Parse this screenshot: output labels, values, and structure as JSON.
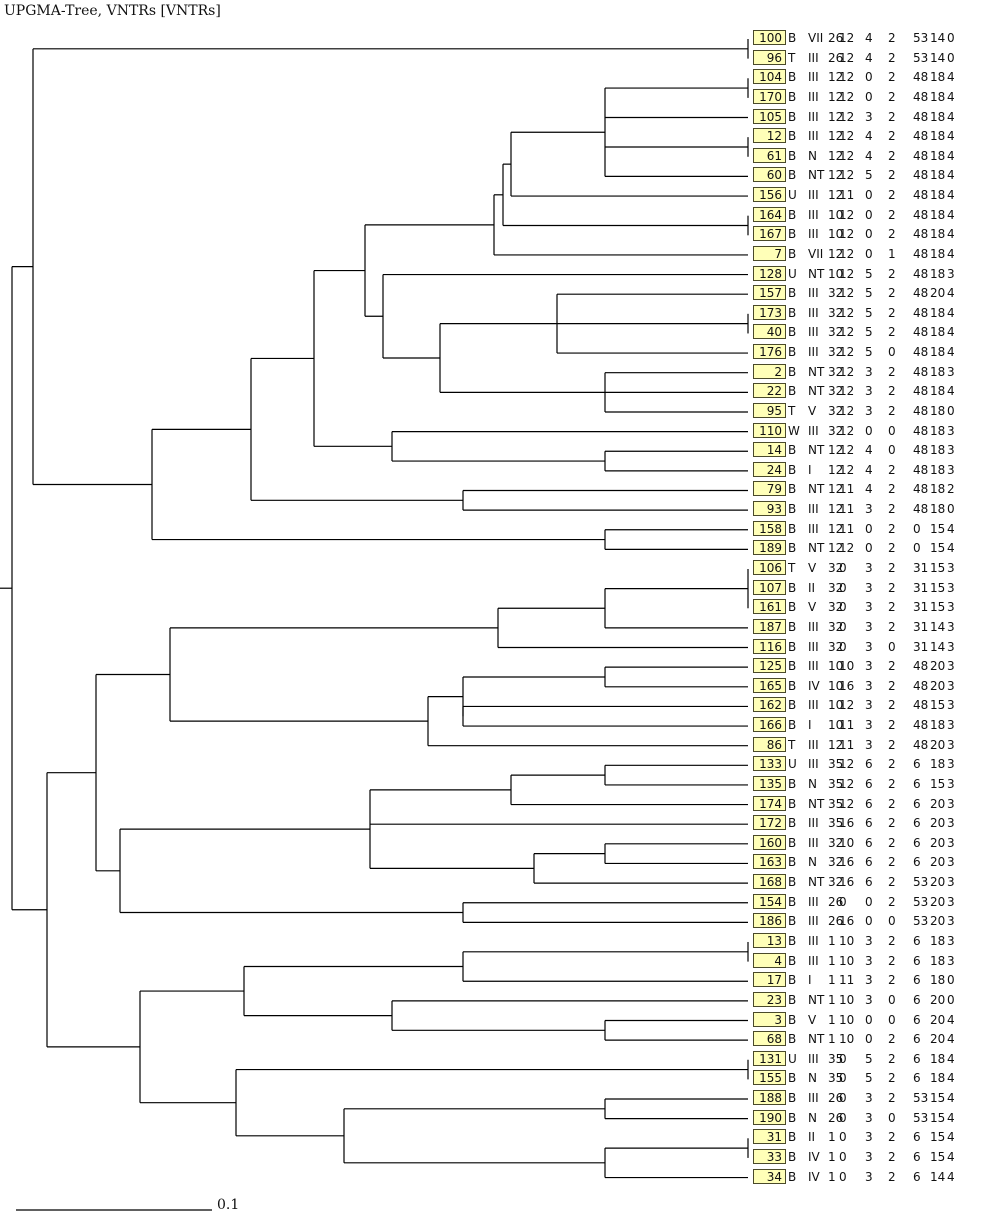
{
  "title": "UPGMA-Tree, VNTRs [VNTRs]",
  "scale_label": "0.1",
  "colors": {
    "label_fill": "#ffffb8",
    "line": "#000000"
  },
  "leaves": [
    {
      "id": "100",
      "cls": "B",
      "type": "VII",
      "v": [
        "26",
        "12",
        "4",
        "2",
        "53",
        "14",
        "0"
      ]
    },
    {
      "id": "96",
      "cls": "T",
      "type": "III",
      "v": [
        "26",
        "12",
        "4",
        "2",
        "53",
        "14",
        "0"
      ]
    },
    {
      "id": "104",
      "cls": "B",
      "type": "III",
      "v": [
        "12",
        "12",
        "0",
        "2",
        "48",
        "18",
        "4"
      ]
    },
    {
      "id": "170",
      "cls": "B",
      "type": "III",
      "v": [
        "12",
        "12",
        "0",
        "2",
        "48",
        "18",
        "4"
      ]
    },
    {
      "id": "105",
      "cls": "B",
      "type": "III",
      "v": [
        "12",
        "12",
        "3",
        "2",
        "48",
        "18",
        "4"
      ]
    },
    {
      "id": "12",
      "cls": "B",
      "type": "III",
      "v": [
        "12",
        "12",
        "4",
        "2",
        "48",
        "18",
        "4"
      ]
    },
    {
      "id": "61",
      "cls": "B",
      "type": "N",
      "v": [
        "12",
        "12",
        "4",
        "2",
        "48",
        "18",
        "4"
      ]
    },
    {
      "id": "60",
      "cls": "B",
      "type": "NT",
      "v": [
        "12",
        "12",
        "5",
        "2",
        "48",
        "18",
        "4"
      ]
    },
    {
      "id": "156",
      "cls": "U",
      "type": "III",
      "v": [
        "12",
        "11",
        "0",
        "2",
        "48",
        "18",
        "4"
      ]
    },
    {
      "id": "164",
      "cls": "B",
      "type": "III",
      "v": [
        "10",
        "12",
        "0",
        "2",
        "48",
        "18",
        "4"
      ]
    },
    {
      "id": "167",
      "cls": "B",
      "type": "III",
      "v": [
        "10",
        "12",
        "0",
        "2",
        "48",
        "18",
        "4"
      ]
    },
    {
      "id": "7",
      "cls": "B",
      "type": "VII",
      "v": [
        "12",
        "12",
        "0",
        "1",
        "48",
        "18",
        "4"
      ]
    },
    {
      "id": "128",
      "cls": "U",
      "type": "NT",
      "v": [
        "10",
        "12",
        "5",
        "2",
        "48",
        "18",
        "3"
      ]
    },
    {
      "id": "157",
      "cls": "B",
      "type": "III",
      "v": [
        "32",
        "12",
        "5",
        "2",
        "48",
        "20",
        "4"
      ]
    },
    {
      "id": "173",
      "cls": "B",
      "type": "III",
      "v": [
        "32",
        "12",
        "5",
        "2",
        "48",
        "18",
        "4"
      ]
    },
    {
      "id": "40",
      "cls": "B",
      "type": "III",
      "v": [
        "32",
        "12",
        "5",
        "2",
        "48",
        "18",
        "4"
      ]
    },
    {
      "id": "176",
      "cls": "B",
      "type": "III",
      "v": [
        "32",
        "12",
        "5",
        "0",
        "48",
        "18",
        "4"
      ]
    },
    {
      "id": "2",
      "cls": "B",
      "type": "NT",
      "v": [
        "32",
        "12",
        "3",
        "2",
        "48",
        "18",
        "3"
      ]
    },
    {
      "id": "22",
      "cls": "B",
      "type": "NT",
      "v": [
        "32",
        "12",
        "3",
        "2",
        "48",
        "18",
        "4"
      ]
    },
    {
      "id": "95",
      "cls": "T",
      "type": "V",
      "v": [
        "32",
        "12",
        "3",
        "2",
        "48",
        "18",
        "0"
      ]
    },
    {
      "id": "110",
      "cls": "W",
      "type": "III",
      "v": [
        "32",
        "12",
        "0",
        "0",
        "48",
        "18",
        "3"
      ]
    },
    {
      "id": "14",
      "cls": "B",
      "type": "NT",
      "v": [
        "12",
        "12",
        "4",
        "0",
        "48",
        "18",
        "3"
      ]
    },
    {
      "id": "24",
      "cls": "B",
      "type": "I",
      "v": [
        "12",
        "12",
        "4",
        "2",
        "48",
        "18",
        "3"
      ]
    },
    {
      "id": "79",
      "cls": "B",
      "type": "NT",
      "v": [
        "12",
        "11",
        "4",
        "2",
        "48",
        "18",
        "2"
      ]
    },
    {
      "id": "93",
      "cls": "B",
      "type": "III",
      "v": [
        "12",
        "11",
        "3",
        "2",
        "48",
        "18",
        "0"
      ]
    },
    {
      "id": "158",
      "cls": "B",
      "type": "III",
      "v": [
        "12",
        "11",
        "0",
        "2",
        "0",
        "15",
        "4"
      ]
    },
    {
      "id": "189",
      "cls": "B",
      "type": "NT",
      "v": [
        "12",
        "12",
        "0",
        "2",
        "0",
        "15",
        "4"
      ]
    },
    {
      "id": "106",
      "cls": "T",
      "type": "V",
      "v": [
        "32",
        "0",
        "3",
        "2",
        "31",
        "15",
        "3"
      ]
    },
    {
      "id": "107",
      "cls": "B",
      "type": "II",
      "v": [
        "32",
        "0",
        "3",
        "2",
        "31",
        "15",
        "3"
      ]
    },
    {
      "id": "161",
      "cls": "B",
      "type": "V",
      "v": [
        "32",
        "0",
        "3",
        "2",
        "31",
        "15",
        "3"
      ]
    },
    {
      "id": "187",
      "cls": "B",
      "type": "III",
      "v": [
        "32",
        "0",
        "3",
        "2",
        "31",
        "14",
        "3"
      ]
    },
    {
      "id": "116",
      "cls": "B",
      "type": "III",
      "v": [
        "32",
        "0",
        "3",
        "0",
        "31",
        "14",
        "3"
      ]
    },
    {
      "id": "125",
      "cls": "B",
      "type": "III",
      "v": [
        "10",
        "10",
        "3",
        "2",
        "48",
        "20",
        "3"
      ]
    },
    {
      "id": "165",
      "cls": "B",
      "type": "IV",
      "v": [
        "10",
        "16",
        "3",
        "2",
        "48",
        "20",
        "3"
      ]
    },
    {
      "id": "162",
      "cls": "B",
      "type": "III",
      "v": [
        "10",
        "12",
        "3",
        "2",
        "48",
        "15",
        "3"
      ]
    },
    {
      "id": "166",
      "cls": "B",
      "type": "I",
      "v": [
        "10",
        "11",
        "3",
        "2",
        "48",
        "18",
        "3"
      ]
    },
    {
      "id": "86",
      "cls": "T",
      "type": "III",
      "v": [
        "12",
        "11",
        "3",
        "2",
        "48",
        "20",
        "3"
      ]
    },
    {
      "id": "133",
      "cls": "U",
      "type": "III",
      "v": [
        "35",
        "12",
        "6",
        "2",
        "6",
        "18",
        "3"
      ]
    },
    {
      "id": "135",
      "cls": "B",
      "type": "N",
      "v": [
        "35",
        "12",
        "6",
        "2",
        "6",
        "15",
        "3"
      ]
    },
    {
      "id": "174",
      "cls": "B",
      "type": "NT",
      "v": [
        "35",
        "12",
        "6",
        "2",
        "6",
        "20",
        "3"
      ]
    },
    {
      "id": "172",
      "cls": "B",
      "type": "III",
      "v": [
        "35",
        "16",
        "6",
        "2",
        "6",
        "20",
        "3"
      ]
    },
    {
      "id": "160",
      "cls": "B",
      "type": "III",
      "v": [
        "32",
        "10",
        "6",
        "2",
        "6",
        "20",
        "3"
      ]
    },
    {
      "id": "163",
      "cls": "B",
      "type": "N",
      "v": [
        "32",
        "16",
        "6",
        "2",
        "6",
        "20",
        "3"
      ]
    },
    {
      "id": "168",
      "cls": "B",
      "type": "NT",
      "v": [
        "32",
        "16",
        "6",
        "2",
        "53",
        "20",
        "3"
      ]
    },
    {
      "id": "154",
      "cls": "B",
      "type": "III",
      "v": [
        "26",
        "0",
        "0",
        "2",
        "53",
        "20",
        "3"
      ]
    },
    {
      "id": "186",
      "cls": "B",
      "type": "III",
      "v": [
        "26",
        "16",
        "0",
        "0",
        "53",
        "20",
        "3"
      ]
    },
    {
      "id": "13",
      "cls": "B",
      "type": "III",
      "v": [
        "1",
        "10",
        "3",
        "2",
        "6",
        "18",
        "3"
      ]
    },
    {
      "id": "4",
      "cls": "B",
      "type": "III",
      "v": [
        "1",
        "10",
        "3",
        "2",
        "6",
        "18",
        "3"
      ]
    },
    {
      "id": "17",
      "cls": "B",
      "type": "I",
      "v": [
        "1",
        "11",
        "3",
        "2",
        "6",
        "18",
        "0"
      ]
    },
    {
      "id": "23",
      "cls": "B",
      "type": "NT",
      "v": [
        "1",
        "10",
        "3",
        "0",
        "6",
        "20",
        "0"
      ]
    },
    {
      "id": "3",
      "cls": "B",
      "type": "V",
      "v": [
        "1",
        "10",
        "0",
        "0",
        "6",
        "20",
        "4"
      ]
    },
    {
      "id": "68",
      "cls": "B",
      "type": "NT",
      "v": [
        "1",
        "10",
        "0",
        "2",
        "6",
        "20",
        "4"
      ]
    },
    {
      "id": "131",
      "cls": "U",
      "type": "III",
      "v": [
        "35",
        "0",
        "5",
        "2",
        "6",
        "18",
        "4"
      ]
    },
    {
      "id": "155",
      "cls": "B",
      "type": "N",
      "v": [
        "35",
        "0",
        "5",
        "2",
        "6",
        "18",
        "4"
      ]
    },
    {
      "id": "188",
      "cls": "B",
      "type": "III",
      "v": [
        "26",
        "0",
        "3",
        "2",
        "53",
        "15",
        "4"
      ]
    },
    {
      "id": "190",
      "cls": "B",
      "type": "N",
      "v": [
        "26",
        "0",
        "3",
        "0",
        "53",
        "15",
        "4"
      ]
    },
    {
      "id": "31",
      "cls": "B",
      "type": "II",
      "v": [
        "1",
        "0",
        "3",
        "2",
        "6",
        "15",
        "4"
      ]
    },
    {
      "id": "33",
      "cls": "B",
      "type": "IV",
      "v": [
        "1",
        "0",
        "3",
        "2",
        "6",
        "15",
        "4"
      ]
    },
    {
      "id": "34",
      "cls": "B",
      "type": "IV",
      "v": [
        "1",
        "0",
        "3",
        "2",
        "6",
        "14",
        "4"
      ]
    }
  ]
}
